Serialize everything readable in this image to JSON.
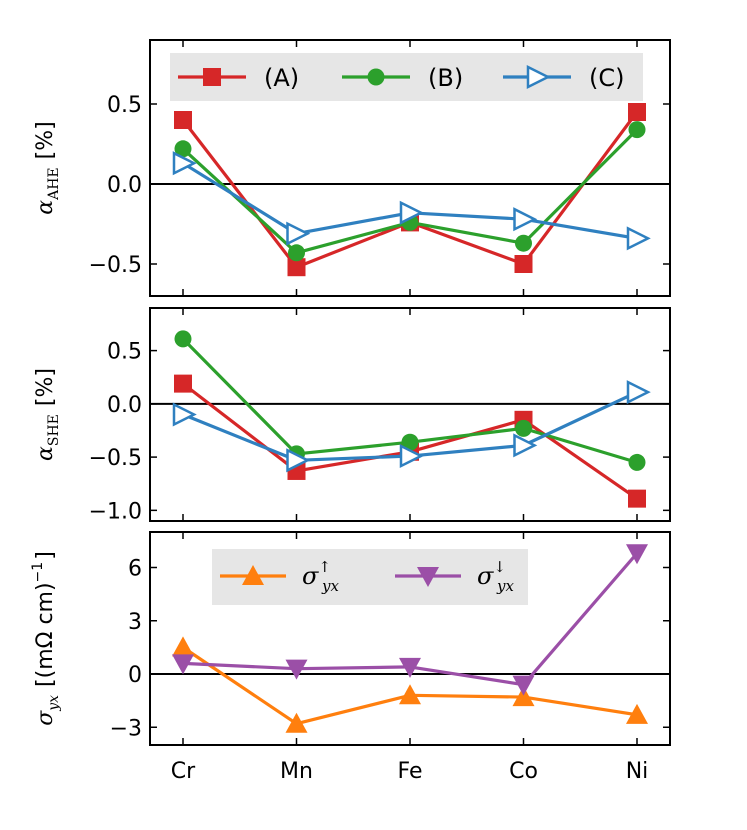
{
  "chart_data": [
    {
      "type": "line",
      "categories": [
        "Cr",
        "Mn",
        "Fe",
        "Co",
        "Ni"
      ],
      "ylabel_symbol": "α",
      "ylabel_sub": "AHE",
      "ylabel_unit": "[%]",
      "ylim": [
        -0.7,
        0.9
      ],
      "yticks": [
        0.5,
        0.0,
        -0.5
      ],
      "ytick_labels": [
        "0.5",
        "0.0",
        "−0.5"
      ],
      "legend_position": "top",
      "series": [
        {
          "name": "(A)",
          "color": "#d62728",
          "marker": "square",
          "values": [
            0.4,
            -0.52,
            -0.24,
            -0.5,
            0.45
          ]
        },
        {
          "name": "(B)",
          "color": "#2ca02c",
          "marker": "circle",
          "values": [
            0.22,
            -0.43,
            -0.24,
            -0.37,
            0.34
          ]
        },
        {
          "name": "(C)",
          "color": "#2f80c0",
          "marker": "triangle-right-open",
          "values": [
            0.13,
            -0.31,
            -0.18,
            -0.22,
            -0.34
          ]
        }
      ]
    },
    {
      "type": "line",
      "categories": [
        "Cr",
        "Mn",
        "Fe",
        "Co",
        "Ni"
      ],
      "ylabel_symbol": "α",
      "ylabel_sub": "SHE",
      "ylabel_unit": "[%]",
      "ylim": [
        -1.1,
        0.9
      ],
      "yticks": [
        0.5,
        0.0,
        -0.5,
        -1.0
      ],
      "ytick_labels": [
        "0.5",
        "0.0",
        "−0.5",
        "−1.0"
      ],
      "series": [
        {
          "name": "(A)",
          "color": "#d62728",
          "marker": "square",
          "values": [
            0.19,
            -0.63,
            -0.45,
            -0.15,
            -0.89
          ]
        },
        {
          "name": "(B)",
          "color": "#2ca02c",
          "marker": "circle",
          "values": [
            0.61,
            -0.47,
            -0.36,
            -0.23,
            -0.55
          ]
        },
        {
          "name": "(C)",
          "color": "#2f80c0",
          "marker": "triangle-right-open",
          "values": [
            -0.1,
            -0.53,
            -0.49,
            -0.39,
            0.11
          ]
        }
      ]
    },
    {
      "type": "line",
      "categories": [
        "Cr",
        "Mn",
        "Fe",
        "Co",
        "Ni"
      ],
      "ylabel_symbol": "σ",
      "ylabel_sub": "yx",
      "ylabel_unit": "[(mΩ cm)",
      "ylabel_unit_sup": "−1",
      "ylabel_unit_close": "]",
      "ylim": [
        -4,
        8
      ],
      "yticks": [
        6,
        3,
        0,
        -3
      ],
      "ytick_labels": [
        "6",
        "3",
        "0",
        "−3"
      ],
      "legend_position": "top-center",
      "series": [
        {
          "name": "σ",
          "name_sub": "yx",
          "name_sup": "↑",
          "color": "#ff7f0e",
          "marker": "triangle-up",
          "values": [
            1.5,
            -2.8,
            -1.2,
            -1.3,
            -2.3
          ]
        },
        {
          "name": "σ",
          "name_sub": "yx",
          "name_sup": "↓",
          "color": "#9b4fa7",
          "marker": "triangle-down",
          "values": [
            0.6,
            0.3,
            0.4,
            -0.6,
            6.8
          ]
        }
      ]
    }
  ]
}
